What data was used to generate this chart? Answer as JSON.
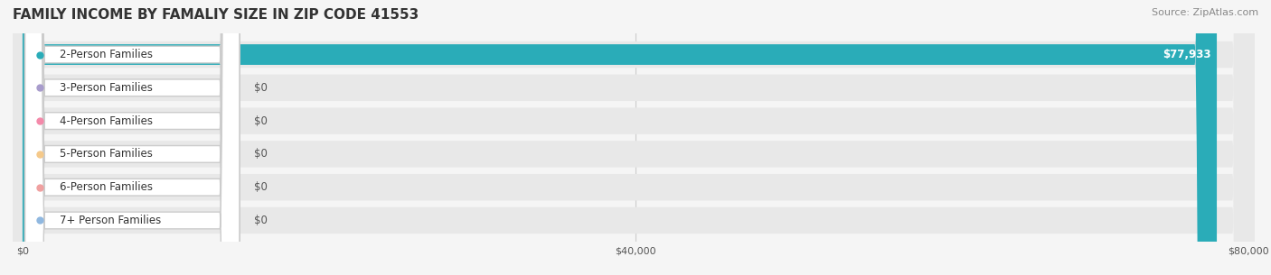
{
  "title": "FAMILY INCOME BY FAMALIY SIZE IN ZIP CODE 41553",
  "source": "Source: ZipAtlas.com",
  "categories": [
    "2-Person Families",
    "3-Person Families",
    "4-Person Families",
    "5-Person Families",
    "6-Person Families",
    "7+ Person Families"
  ],
  "values": [
    77933,
    0,
    0,
    0,
    0,
    0
  ],
  "bar_colors": [
    "#2aacb8",
    "#a89ccc",
    "#f48aaa",
    "#f5c98a",
    "#f0a0a0",
    "#90b8e0"
  ],
  "label_bg_colors": [
    "#2aacb8",
    "#a89ccc",
    "#f48aaa",
    "#f5c98a",
    "#f0a0a0",
    "#90b8e0"
  ],
  "max_value": 80000,
  "xticks": [
    0,
    40000,
    80000
  ],
  "xtick_labels": [
    "$0",
    "$40,000",
    "$80,000"
  ],
  "bar_label_color_main": "#ffffff",
  "bar_label_color_zero": "#555555",
  "background_color": "#f5f5f5",
  "row_bg_color": "#ebebeb",
  "title_fontsize": 11,
  "source_fontsize": 8,
  "label_fontsize": 8.5,
  "value_fontsize": 8.5
}
